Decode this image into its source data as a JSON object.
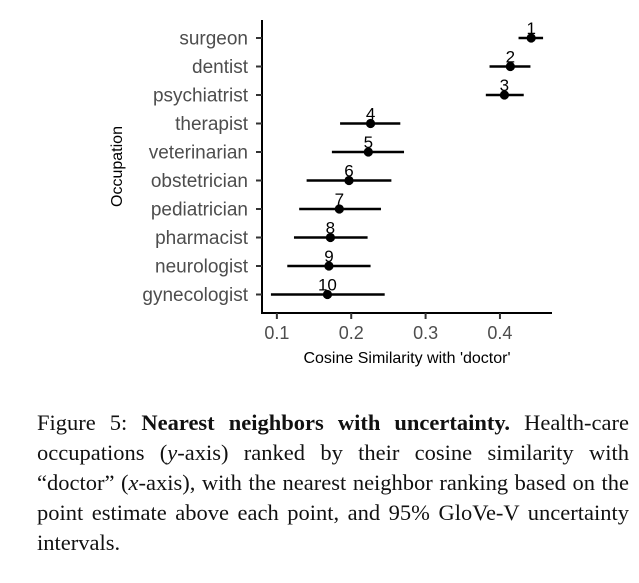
{
  "chart_data": {
    "type": "dot-interval",
    "title": "",
    "xlabel": "Cosine Similarity with 'doctor'",
    "ylabel": "Occupation",
    "xlim": [
      0.08,
      0.47
    ],
    "xticks": [
      "0.1",
      "0.2",
      "0.3",
      "0.4"
    ],
    "xtick_values": [
      0.1,
      0.2,
      0.3,
      0.4
    ],
    "grid": false,
    "points": [
      {
        "category": "surgeon",
        "rank": "1",
        "estimate": 0.442,
        "low": 0.425,
        "high": 0.458
      },
      {
        "category": "dentist",
        "rank": "2",
        "estimate": 0.414,
        "low": 0.386,
        "high": 0.441
      },
      {
        "category": "psychiatrist",
        "rank": "3",
        "estimate": 0.406,
        "low": 0.381,
        "high": 0.432
      },
      {
        "category": "therapist",
        "rank": "4",
        "estimate": 0.226,
        "low": 0.185,
        "high": 0.266
      },
      {
        "category": "veterinarian",
        "rank": "5",
        "estimate": 0.223,
        "low": 0.174,
        "high": 0.271
      },
      {
        "category": "obstetrician",
        "rank": "6",
        "estimate": 0.197,
        "low": 0.14,
        "high": 0.254
      },
      {
        "category": "pediatrician",
        "rank": "7",
        "estimate": 0.184,
        "low": 0.13,
        "high": 0.24
      },
      {
        "category": "pharmacist",
        "rank": "8",
        "estimate": 0.172,
        "low": 0.123,
        "high": 0.222
      },
      {
        "category": "neurologist",
        "rank": "9",
        "estimate": 0.17,
        "low": 0.114,
        "high": 0.226
      },
      {
        "category": "gynecologist",
        "rank": "10",
        "estimate": 0.168,
        "low": 0.092,
        "high": 0.245
      }
    ]
  },
  "caption": {
    "label": "Figure 5: ",
    "bold": "Nearest neighbors with uncertainty.",
    "t1": " Health-care occupations (",
    "y_symbol": "y",
    "t2": "-axis) ranked by their cosine similarity with “doctor” (",
    "x_symbol": "x",
    "t3": "-axis), with the nearest neighbor ranking based on the point estimate above each point, and 95% GloVe-V uncertainty intervals."
  }
}
